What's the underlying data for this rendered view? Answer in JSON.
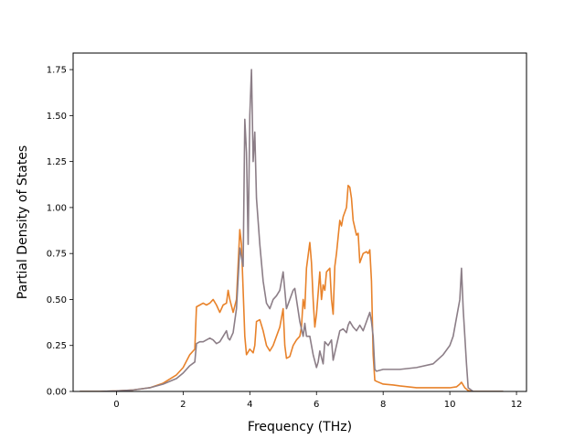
{
  "chart_data": {
    "type": "line",
    "title": "",
    "xlabel": "Frequency (THz)",
    "ylabel": "Partial Density of States",
    "xlim": [
      -1.3,
      12.3
    ],
    "ylim": [
      0,
      1.84
    ],
    "xticks": [
      0,
      2,
      4,
      6,
      8,
      10,
      12
    ],
    "xtick_labels": [
      "0",
      "2",
      "4",
      "6",
      "8",
      "10",
      "12"
    ],
    "yticks": [
      0,
      0.25,
      0.5,
      0.75,
      1.0,
      1.25,
      1.5,
      1.75
    ],
    "ytick_labels": [
      "0.00",
      "0.25",
      "0.50",
      "0.75",
      "1.00",
      "1.25",
      "1.50",
      "1.75"
    ],
    "grid": false,
    "legend": "none",
    "series": [
      {
        "color": "#e8822a",
        "points": [
          [
            -1.1,
            0
          ],
          [
            -0.5,
            0
          ],
          [
            0,
            0.003
          ],
          [
            0.5,
            0.008
          ],
          [
            1.0,
            0.02
          ],
          [
            1.4,
            0.045
          ],
          [
            1.8,
            0.09
          ],
          [
            2.0,
            0.13
          ],
          [
            2.2,
            0.2
          ],
          [
            2.35,
            0.23
          ],
          [
            2.4,
            0.46
          ],
          [
            2.5,
            0.47
          ],
          [
            2.6,
            0.48
          ],
          [
            2.7,
            0.47
          ],
          [
            2.8,
            0.48
          ],
          [
            2.9,
            0.5
          ],
          [
            3.0,
            0.47
          ],
          [
            3.1,
            0.43
          ],
          [
            3.2,
            0.47
          ],
          [
            3.3,
            0.48
          ],
          [
            3.35,
            0.55
          ],
          [
            3.4,
            0.5
          ],
          [
            3.5,
            0.43
          ],
          [
            3.6,
            0.5
          ],
          [
            3.7,
            0.88
          ],
          [
            3.75,
            0.8
          ],
          [
            3.8,
            0.55
          ],
          [
            3.85,
            0.3
          ],
          [
            3.9,
            0.2
          ],
          [
            4.0,
            0.23
          ],
          [
            4.1,
            0.21
          ],
          [
            4.15,
            0.25
          ],
          [
            4.2,
            0.38
          ],
          [
            4.3,
            0.39
          ],
          [
            4.4,
            0.33
          ],
          [
            4.5,
            0.25
          ],
          [
            4.6,
            0.22
          ],
          [
            4.7,
            0.25
          ],
          [
            4.8,
            0.3
          ],
          [
            4.9,
            0.35
          ],
          [
            5.0,
            0.45
          ],
          [
            5.05,
            0.25
          ],
          [
            5.1,
            0.18
          ],
          [
            5.2,
            0.19
          ],
          [
            5.3,
            0.25
          ],
          [
            5.4,
            0.28
          ],
          [
            5.5,
            0.3
          ],
          [
            5.55,
            0.35
          ],
          [
            5.6,
            0.5
          ],
          [
            5.65,
            0.45
          ],
          [
            5.7,
            0.67
          ],
          [
            5.8,
            0.81
          ],
          [
            5.85,
            0.7
          ],
          [
            5.9,
            0.5
          ],
          [
            5.95,
            0.35
          ],
          [
            6.0,
            0.42
          ],
          [
            6.1,
            0.65
          ],
          [
            6.15,
            0.5
          ],
          [
            6.2,
            0.58
          ],
          [
            6.25,
            0.55
          ],
          [
            6.3,
            0.65
          ],
          [
            6.4,
            0.67
          ],
          [
            6.45,
            0.5
          ],
          [
            6.5,
            0.42
          ],
          [
            6.55,
            0.68
          ],
          [
            6.6,
            0.75
          ],
          [
            6.7,
            0.93
          ],
          [
            6.75,
            0.9
          ],
          [
            6.8,
            0.95
          ],
          [
            6.9,
            1.0
          ],
          [
            6.95,
            1.12
          ],
          [
            7.0,
            1.11
          ],
          [
            7.05,
            1.05
          ],
          [
            7.1,
            0.93
          ],
          [
            7.2,
            0.85
          ],
          [
            7.25,
            0.86
          ],
          [
            7.3,
            0.7
          ],
          [
            7.4,
            0.75
          ],
          [
            7.5,
            0.76
          ],
          [
            7.55,
            0.75
          ],
          [
            7.6,
            0.77
          ],
          [
            7.65,
            0.6
          ],
          [
            7.7,
            0.2
          ],
          [
            7.75,
            0.06
          ],
          [
            7.8,
            0.055
          ],
          [
            8.0,
            0.04
          ],
          [
            8.3,
            0.035
          ],
          [
            8.5,
            0.03
          ],
          [
            9.0,
            0.02
          ],
          [
            9.5,
            0.02
          ],
          [
            10.0,
            0.02
          ],
          [
            10.2,
            0.025
          ],
          [
            10.3,
            0.04
          ],
          [
            10.35,
            0.05
          ],
          [
            10.45,
            0.02
          ],
          [
            10.55,
            0.005
          ],
          [
            10.7,
            0
          ],
          [
            11.6,
            0
          ]
        ]
      },
      {
        "color": "#8c7e87",
        "points": [
          [
            -1.1,
            0
          ],
          [
            -0.5,
            0
          ],
          [
            0,
            0.003
          ],
          [
            0.5,
            0.008
          ],
          [
            1.0,
            0.02
          ],
          [
            1.4,
            0.04
          ],
          [
            1.8,
            0.07
          ],
          [
            2.0,
            0.1
          ],
          [
            2.2,
            0.14
          ],
          [
            2.35,
            0.16
          ],
          [
            2.4,
            0.26
          ],
          [
            2.5,
            0.27
          ],
          [
            2.6,
            0.27
          ],
          [
            2.7,
            0.28
          ],
          [
            2.8,
            0.29
          ],
          [
            2.9,
            0.28
          ],
          [
            3.0,
            0.26
          ],
          [
            3.1,
            0.27
          ],
          [
            3.2,
            0.3
          ],
          [
            3.3,
            0.33
          ],
          [
            3.35,
            0.29
          ],
          [
            3.4,
            0.28
          ],
          [
            3.5,
            0.32
          ],
          [
            3.6,
            0.45
          ],
          [
            3.7,
            0.78
          ],
          [
            3.8,
            0.68
          ],
          [
            3.85,
            1.48
          ],
          [
            3.9,
            1.3
          ],
          [
            3.95,
            0.8
          ],
          [
            4.0,
            1.5
          ],
          [
            4.05,
            1.75
          ],
          [
            4.1,
            1.25
          ],
          [
            4.15,
            1.41
          ],
          [
            4.2,
            1.05
          ],
          [
            4.3,
            0.8
          ],
          [
            4.4,
            0.6
          ],
          [
            4.5,
            0.48
          ],
          [
            4.6,
            0.45
          ],
          [
            4.7,
            0.5
          ],
          [
            4.8,
            0.52
          ],
          [
            4.9,
            0.55
          ],
          [
            5.0,
            0.65
          ],
          [
            5.05,
            0.55
          ],
          [
            5.1,
            0.45
          ],
          [
            5.2,
            0.5
          ],
          [
            5.3,
            0.55
          ],
          [
            5.35,
            0.56
          ],
          [
            5.4,
            0.5
          ],
          [
            5.5,
            0.38
          ],
          [
            5.6,
            0.3
          ],
          [
            5.65,
            0.37
          ],
          [
            5.7,
            0.3
          ],
          [
            5.8,
            0.3
          ],
          [
            5.9,
            0.2
          ],
          [
            6.0,
            0.13
          ],
          [
            6.05,
            0.16
          ],
          [
            6.1,
            0.22
          ],
          [
            6.2,
            0.15
          ],
          [
            6.25,
            0.27
          ],
          [
            6.35,
            0.25
          ],
          [
            6.45,
            0.28
          ],
          [
            6.5,
            0.17
          ],
          [
            6.6,
            0.25
          ],
          [
            6.7,
            0.33
          ],
          [
            6.8,
            0.34
          ],
          [
            6.9,
            0.32
          ],
          [
            6.95,
            0.36
          ],
          [
            7.0,
            0.38
          ],
          [
            7.1,
            0.35
          ],
          [
            7.2,
            0.33
          ],
          [
            7.3,
            0.36
          ],
          [
            7.4,
            0.33
          ],
          [
            7.5,
            0.38
          ],
          [
            7.6,
            0.43
          ],
          [
            7.65,
            0.38
          ],
          [
            7.7,
            0.3
          ],
          [
            7.75,
            0.12
          ],
          [
            7.8,
            0.11
          ],
          [
            8.0,
            0.12
          ],
          [
            8.5,
            0.12
          ],
          [
            9.0,
            0.13
          ],
          [
            9.5,
            0.15
          ],
          [
            9.8,
            0.2
          ],
          [
            10.0,
            0.25
          ],
          [
            10.1,
            0.3
          ],
          [
            10.2,
            0.4
          ],
          [
            10.3,
            0.5
          ],
          [
            10.35,
            0.67
          ],
          [
            10.4,
            0.45
          ],
          [
            10.5,
            0.15
          ],
          [
            10.55,
            0.02
          ],
          [
            10.7,
            0
          ],
          [
            11.6,
            0
          ]
        ]
      }
    ]
  }
}
